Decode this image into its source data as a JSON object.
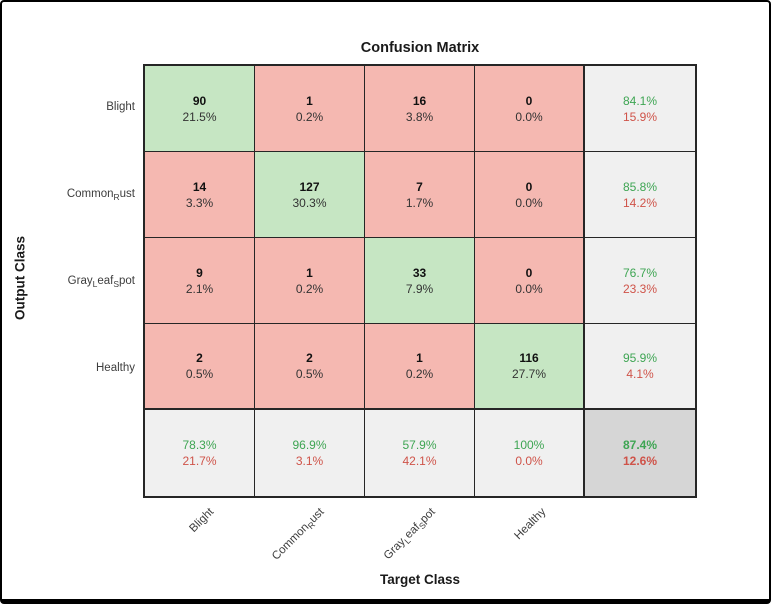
{
  "figure": {
    "background": "#ffffff",
    "frame_color": "#000000"
  },
  "chart_data": {
    "type": "heatmap",
    "subtype": "confusion-matrix",
    "title": "Confusion Matrix",
    "xlabel": "Target Class",
    "ylabel": "Output Class",
    "grid": true,
    "legend_position": "none",
    "classes": [
      {
        "name": "Blight",
        "segments": [
          {
            "t": "Blight",
            "sub": false
          }
        ]
      },
      {
        "name": "Common_Rust",
        "segments": [
          {
            "t": "Common",
            "sub": false
          },
          {
            "t": "R",
            "sub": true
          },
          {
            "t": "ust",
            "sub": false
          }
        ]
      },
      {
        "name": "Gray_Leaf_Spot",
        "segments": [
          {
            "t": "Gray",
            "sub": false
          },
          {
            "t": "L",
            "sub": true
          },
          {
            "t": "eaf",
            "sub": false
          },
          {
            "t": "S",
            "sub": true
          },
          {
            "t": "pot",
            "sub": false
          }
        ]
      },
      {
        "name": "Healthy",
        "segments": [
          {
            "t": "Healthy",
            "sub": false
          }
        ]
      }
    ],
    "counts": [
      [
        90,
        1,
        16,
        0
      ],
      [
        14,
        127,
        7,
        0
      ],
      [
        9,
        1,
        33,
        0
      ],
      [
        2,
        2,
        1,
        116
      ]
    ],
    "percents": [
      [
        "21.5%",
        "0.2%",
        "3.8%",
        "0.0%"
      ],
      [
        "3.3%",
        "30.3%",
        "1.7%",
        "0.0%"
      ],
      [
        "2.1%",
        "0.2%",
        "7.9%",
        "0.0%"
      ],
      [
        "0.5%",
        "0.5%",
        "0.2%",
        "27.7%"
      ]
    ],
    "row_summary": [
      {
        "good": "84.1%",
        "bad": "15.9%"
      },
      {
        "good": "85.8%",
        "bad": "14.2%"
      },
      {
        "good": "76.7%",
        "bad": "23.3%"
      },
      {
        "good": "95.9%",
        "bad": "4.1%"
      }
    ],
    "col_summary": [
      {
        "good": "78.3%",
        "bad": "21.7%"
      },
      {
        "good": "96.9%",
        "bad": "3.1%"
      },
      {
        "good": "57.9%",
        "bad": "42.1%"
      },
      {
        "good": "100%",
        "bad": "0.0%"
      }
    ],
    "overall": {
      "good": "87.4%",
      "bad": "12.6%"
    },
    "colors": {
      "correct_cell": "#c6e6c3",
      "incorrect_cell": "#f5b8b1",
      "summary_cell": "#f0f0f0",
      "overall_cell": "#d6d6d6",
      "good_text": "#3ea553",
      "bad_text": "#cf5349",
      "count_text": "#111111",
      "grid_line": "#262626"
    }
  }
}
